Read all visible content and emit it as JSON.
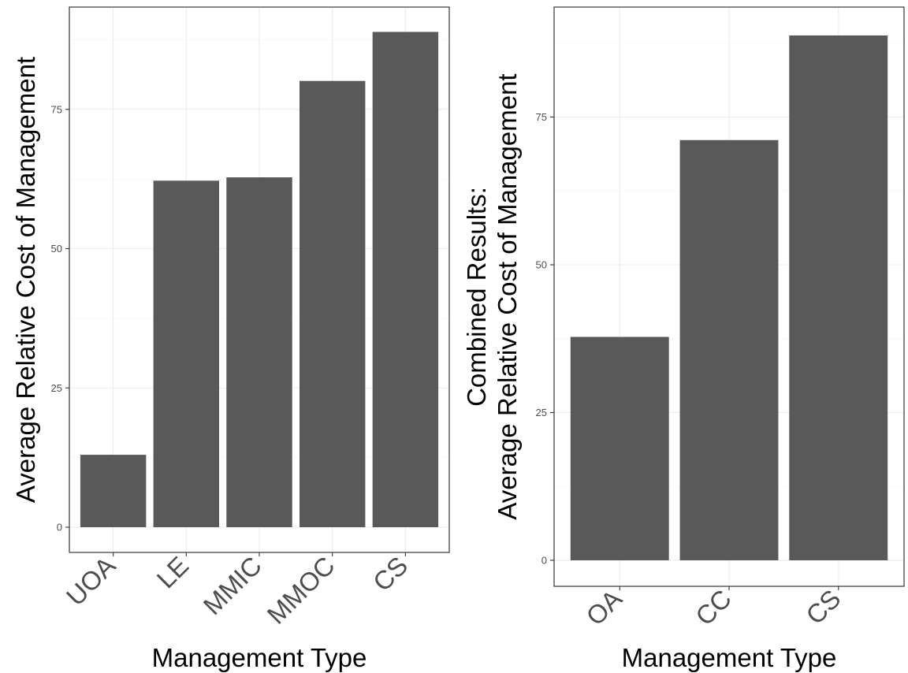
{
  "chart_data": [
    {
      "type": "bar",
      "categories": [
        "UOA",
        "LE",
        "MMIC",
        "MMOC",
        "CS"
      ],
      "values": [
        13,
        62.2,
        62.8,
        80.1,
        88.9
      ],
      "xlabel": "Management Type",
      "ylabel": [
        "Average Relative Cost of Management"
      ],
      "ylim": [
        0,
        93
      ],
      "yticks": [
        0,
        25,
        50,
        75
      ],
      "grid": true,
      "bar_color": "#595959"
    },
    {
      "type": "bar",
      "categories": [
        "OA",
        "CC",
        "CS"
      ],
      "values": [
        37.8,
        71.1,
        88.8
      ],
      "xlabel": "Management Type",
      "ylabel": [
        "Combined Results:",
        "Average Relative Cost of Management"
      ],
      "ylim": [
        0,
        93
      ],
      "yticks": [
        0,
        25,
        50,
        75
      ],
      "grid": true,
      "bar_color": "#595959"
    }
  ]
}
